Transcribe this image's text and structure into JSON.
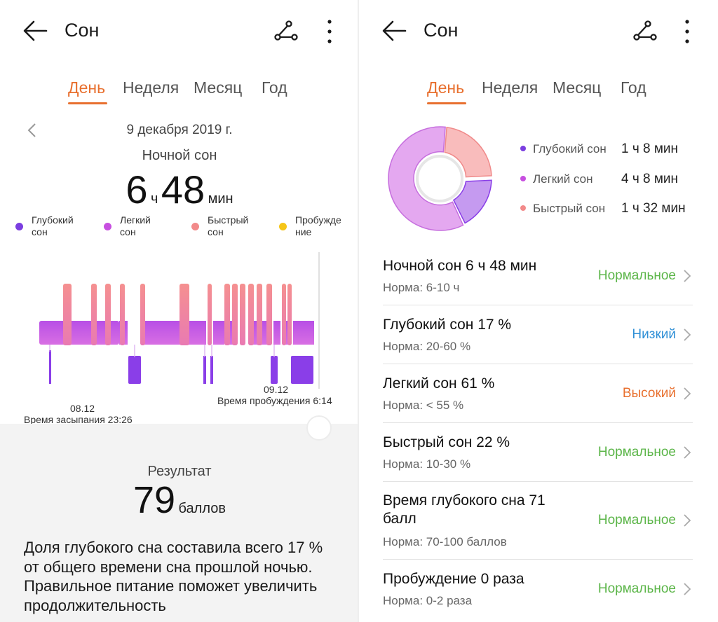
{
  "colors": {
    "accent": "#e8702f",
    "deep": "#7b3ee0",
    "light": "#c74fe0",
    "rem": "#f28a8a",
    "awake": "#f5c518",
    "normal": "#5bb548",
    "low": "#2f8fd6",
    "high": "#e8702f"
  },
  "left": {
    "header": {
      "title": "Сон"
    },
    "tabs": [
      "День",
      "Неделя",
      "Месяц",
      "Год"
    ],
    "date": "9 декабря 2019 г.",
    "night_sleep_label": "Ночной сон",
    "total": {
      "hours": "6",
      "h_unit": "ч",
      "minutes": "48",
      "m_unit": "мин"
    },
    "legend": [
      {
        "line1": "Глубокий",
        "line2": "сон",
        "color": "#7b3ee0"
      },
      {
        "line1": "Легкий",
        "line2": "сон",
        "color": "#c74fe0"
      },
      {
        "line1": "Быстрый",
        "line2": "сон",
        "color": "#f28a8a"
      },
      {
        "line1": "Пробужде",
        "line2": "ние",
        "color": "#f5c518"
      }
    ],
    "chart": {
      "start_date": "08.12",
      "fall_asleep": "Время засыпания 23:26",
      "end_date": "09.12",
      "wake_up": "Время пробуждения 6:14"
    },
    "result": {
      "label": "Результат",
      "value": "79",
      "unit": "баллов",
      "advice": "Доля глубокого сна составила всего 17 % от общего времени сна прошлой ночью. Правильное питание поможет увеличить продолжительность"
    }
  },
  "right": {
    "header": {
      "title": "Сон"
    },
    "tabs": [
      "День",
      "Неделя",
      "Месяц",
      "Год"
    ],
    "donut_legend": [
      {
        "label": "Глубокий сон",
        "value": "1 ч 8 мин",
        "color": "#7b3ee0"
      },
      {
        "label": "Легкий сон",
        "value": "4 ч 8 мин",
        "color": "#c74fe0"
      },
      {
        "label": "Быстрый сон",
        "value": "1 ч 32 мин",
        "color": "#f28a8a"
      }
    ],
    "rows": [
      {
        "title": "Ночной сон  6 ч 48 мин",
        "norm": "Норма: 6-10 ч",
        "status": "Нормальное",
        "status_color": "#5bb548"
      },
      {
        "title": "Глубокий сон  17 %",
        "norm": "Норма: 20-60 %",
        "status": "Низкий",
        "status_color": "#2f8fd6"
      },
      {
        "title": "Легкий сон  61 %",
        "norm": "Норма: < 55 %",
        "status": "Высокий",
        "status_color": "#e8702f"
      },
      {
        "title": "Быстрый сон  22 %",
        "norm": "Норма: 10-30 %",
        "status": "Нормальное",
        "status_color": "#5bb548"
      },
      {
        "title": "Время глубокого сна  71 балл",
        "norm": "Норма: 70-100 баллов",
        "status": "Нормальное",
        "status_color": "#5bb548"
      },
      {
        "title": "Пробуждение  0 раза",
        "norm": "Норма: 0-2 раза",
        "status": "Нормальное",
        "status_color": "#5bb548"
      }
    ]
  }
}
